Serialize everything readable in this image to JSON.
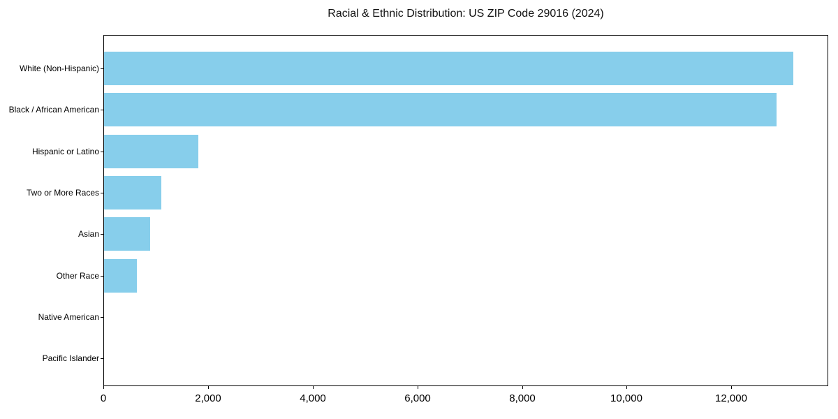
{
  "figure": {
    "background": "#ffffff",
    "text_color": "#000000",
    "spine_color": "#000000"
  },
  "chart_data": {
    "type": "bar",
    "orientation": "horizontal",
    "title": "Racial & Ethnic Distribution: US ZIP Code 29016 (2024)",
    "categories": [
      "White (Non-Hispanic)",
      "Black / African American",
      "Hispanic or Latino",
      "Two or More Races",
      "Asian",
      "Other Race",
      "Native American",
      "Pacific Islander"
    ],
    "values": [
      13170,
      12850,
      1800,
      1100,
      880,
      630,
      0,
      0
    ],
    "bar_color": "#87CEEB",
    "xlabel": "",
    "ylabel": "",
    "xlim": [
      0,
      13850
    ],
    "x_ticks": [
      0,
      2000,
      4000,
      6000,
      8000,
      10000,
      12000
    ],
    "x_tick_labels": [
      "0",
      "2,000",
      "4,000",
      "6,000",
      "8,000",
      "10,000",
      "12,000"
    ],
    "grid": false,
    "legend_position": "none"
  }
}
